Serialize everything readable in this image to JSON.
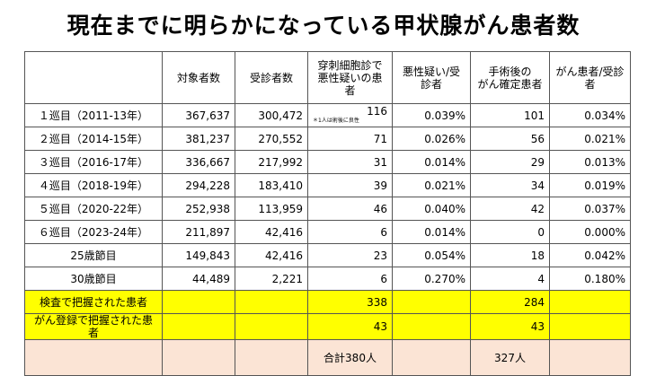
{
  "title": "現在までに明らかになっている甲状腺がん患者数",
  "headers": [
    "",
    "対象者数",
    "受診者数",
    "穿刺細胞診で\n悪性疑いの患者",
    "悪性疑い/受診者",
    "手術後の\nがん確定患者",
    "がん患者/受診者"
  ],
  "rows": [
    {
      "label": "１巡目（2011-13年）",
      "subjects": "367,637",
      "examined": "300,472",
      "suspected": "116",
      "note": "＊1人は術後に良性",
      "suspected_rate": "0.039%",
      "confirmed": "101",
      "confirmed_rate": "0.034%"
    },
    {
      "label": "２巡目（2014-15年）",
      "subjects": "381,237",
      "examined": "270,552",
      "suspected": "71",
      "suspected_rate": "0.026%",
      "confirmed": "56",
      "confirmed_rate": "0.021%"
    },
    {
      "label": "３巡目（2016-17年）",
      "subjects": "336,667",
      "examined": "217,992",
      "suspected": "31",
      "suspected_rate": "0.014%",
      "confirmed": "29",
      "confirmed_rate": "0.013%"
    },
    {
      "label": "４巡目（2018-19年）",
      "subjects": "294,228",
      "examined": "183,410",
      "suspected": "39",
      "suspected_rate": "0.021%",
      "confirmed": "34",
      "confirmed_rate": "0.019%"
    },
    {
      "label": "５巡目（2020-22年）",
      "subjects": "252,938",
      "examined": "113,959",
      "suspected": "46",
      "suspected_rate": "0.040%",
      "confirmed": "42",
      "confirmed_rate": "0.037%"
    },
    {
      "label": "６巡目（2023-24年）",
      "subjects": "211,897",
      "examined": "42,416",
      "suspected": "6",
      "suspected_rate": "0.014%",
      "confirmed": "0",
      "confirmed_rate": "0.000%"
    },
    {
      "label": "25歳節目",
      "subjects": "149,843",
      "examined": "42,416",
      "suspected": "23",
      "suspected_rate": "0.054%",
      "confirmed": "18",
      "confirmed_rate": "0.042%"
    },
    {
      "label": "30歳節目",
      "subjects": "44,489",
      "examined": "2,221",
      "suspected": "6",
      "suspected_rate": "0.270%",
      "confirmed": "4",
      "confirmed_rate": "0.180%"
    }
  ],
  "exam_row": {
    "label": "検査で把握された患者",
    "suspected": "338",
    "confirmed": "284"
  },
  "registry_row": {
    "label": "がん登録で把握された患者",
    "suspected": "43",
    "confirmed": "43"
  },
  "total_row": {
    "suspected_total": "合計380人",
    "confirmed_total": "327人"
  },
  "colors": {
    "highlight": "#ffff00",
    "total_bg": "#fbe4d5"
  }
}
